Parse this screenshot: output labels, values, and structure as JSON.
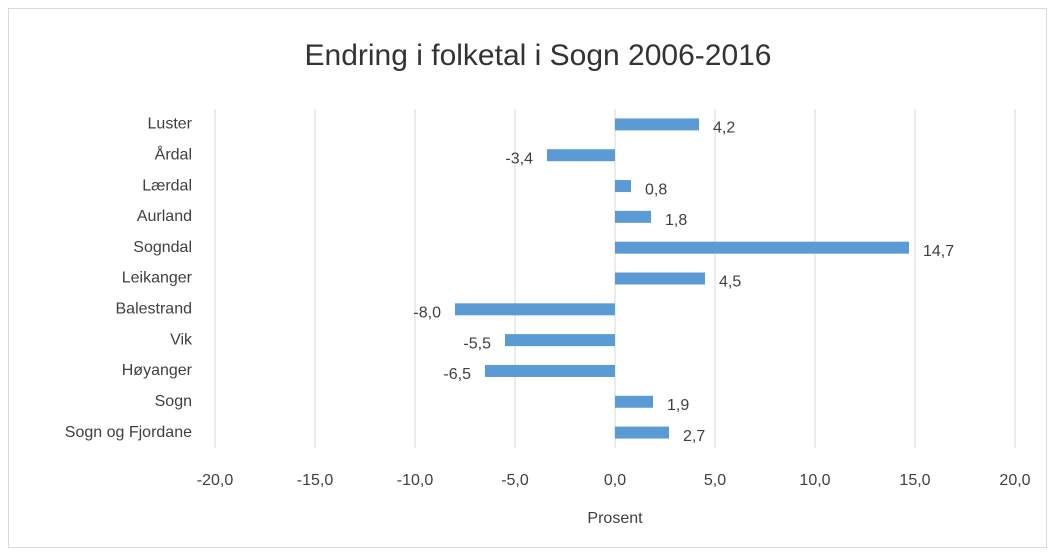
{
  "chart_data": {
    "type": "hbar",
    "title": "Endring i folketal i Sogn 2006-2016",
    "x_label": "Prosent",
    "categories": [
      "Luster",
      "Årdal",
      "Lærdal",
      "Aurland",
      "Sogndal",
      "Leikanger",
      "Balestrand",
      "Vik",
      "Høyanger",
      "Sogn",
      "Sogn og Fjordane"
    ],
    "values": [
      4.2,
      -3.4,
      0.8,
      1.8,
      14.7,
      4.5,
      -8.0,
      -5.5,
      -6.5,
      1.9,
      2.7
    ],
    "value_labels": [
      "4,2",
      "-3,4",
      "0,8",
      "1,8",
      "14,7",
      "4,5",
      "-8,0",
      "-5,5",
      "-6,5",
      "1,9",
      "2,7"
    ],
    "color": "#5b9bd5",
    "xlim": [
      -20,
      20
    ],
    "xticks": [
      {
        "value": -20,
        "label": "-20,0"
      },
      {
        "value": -15,
        "label": "-15,0"
      },
      {
        "value": -10,
        "label": "-10,0"
      },
      {
        "value": -5,
        "label": "-5,0"
      },
      {
        "value": 0,
        "label": "0,0"
      },
      {
        "value": 5,
        "label": "5,0"
      },
      {
        "value": 10,
        "label": "10,0"
      },
      {
        "value": 15,
        "label": "15,0"
      },
      {
        "value": 20,
        "label": "20,0"
      }
    ],
    "grid": true
  }
}
